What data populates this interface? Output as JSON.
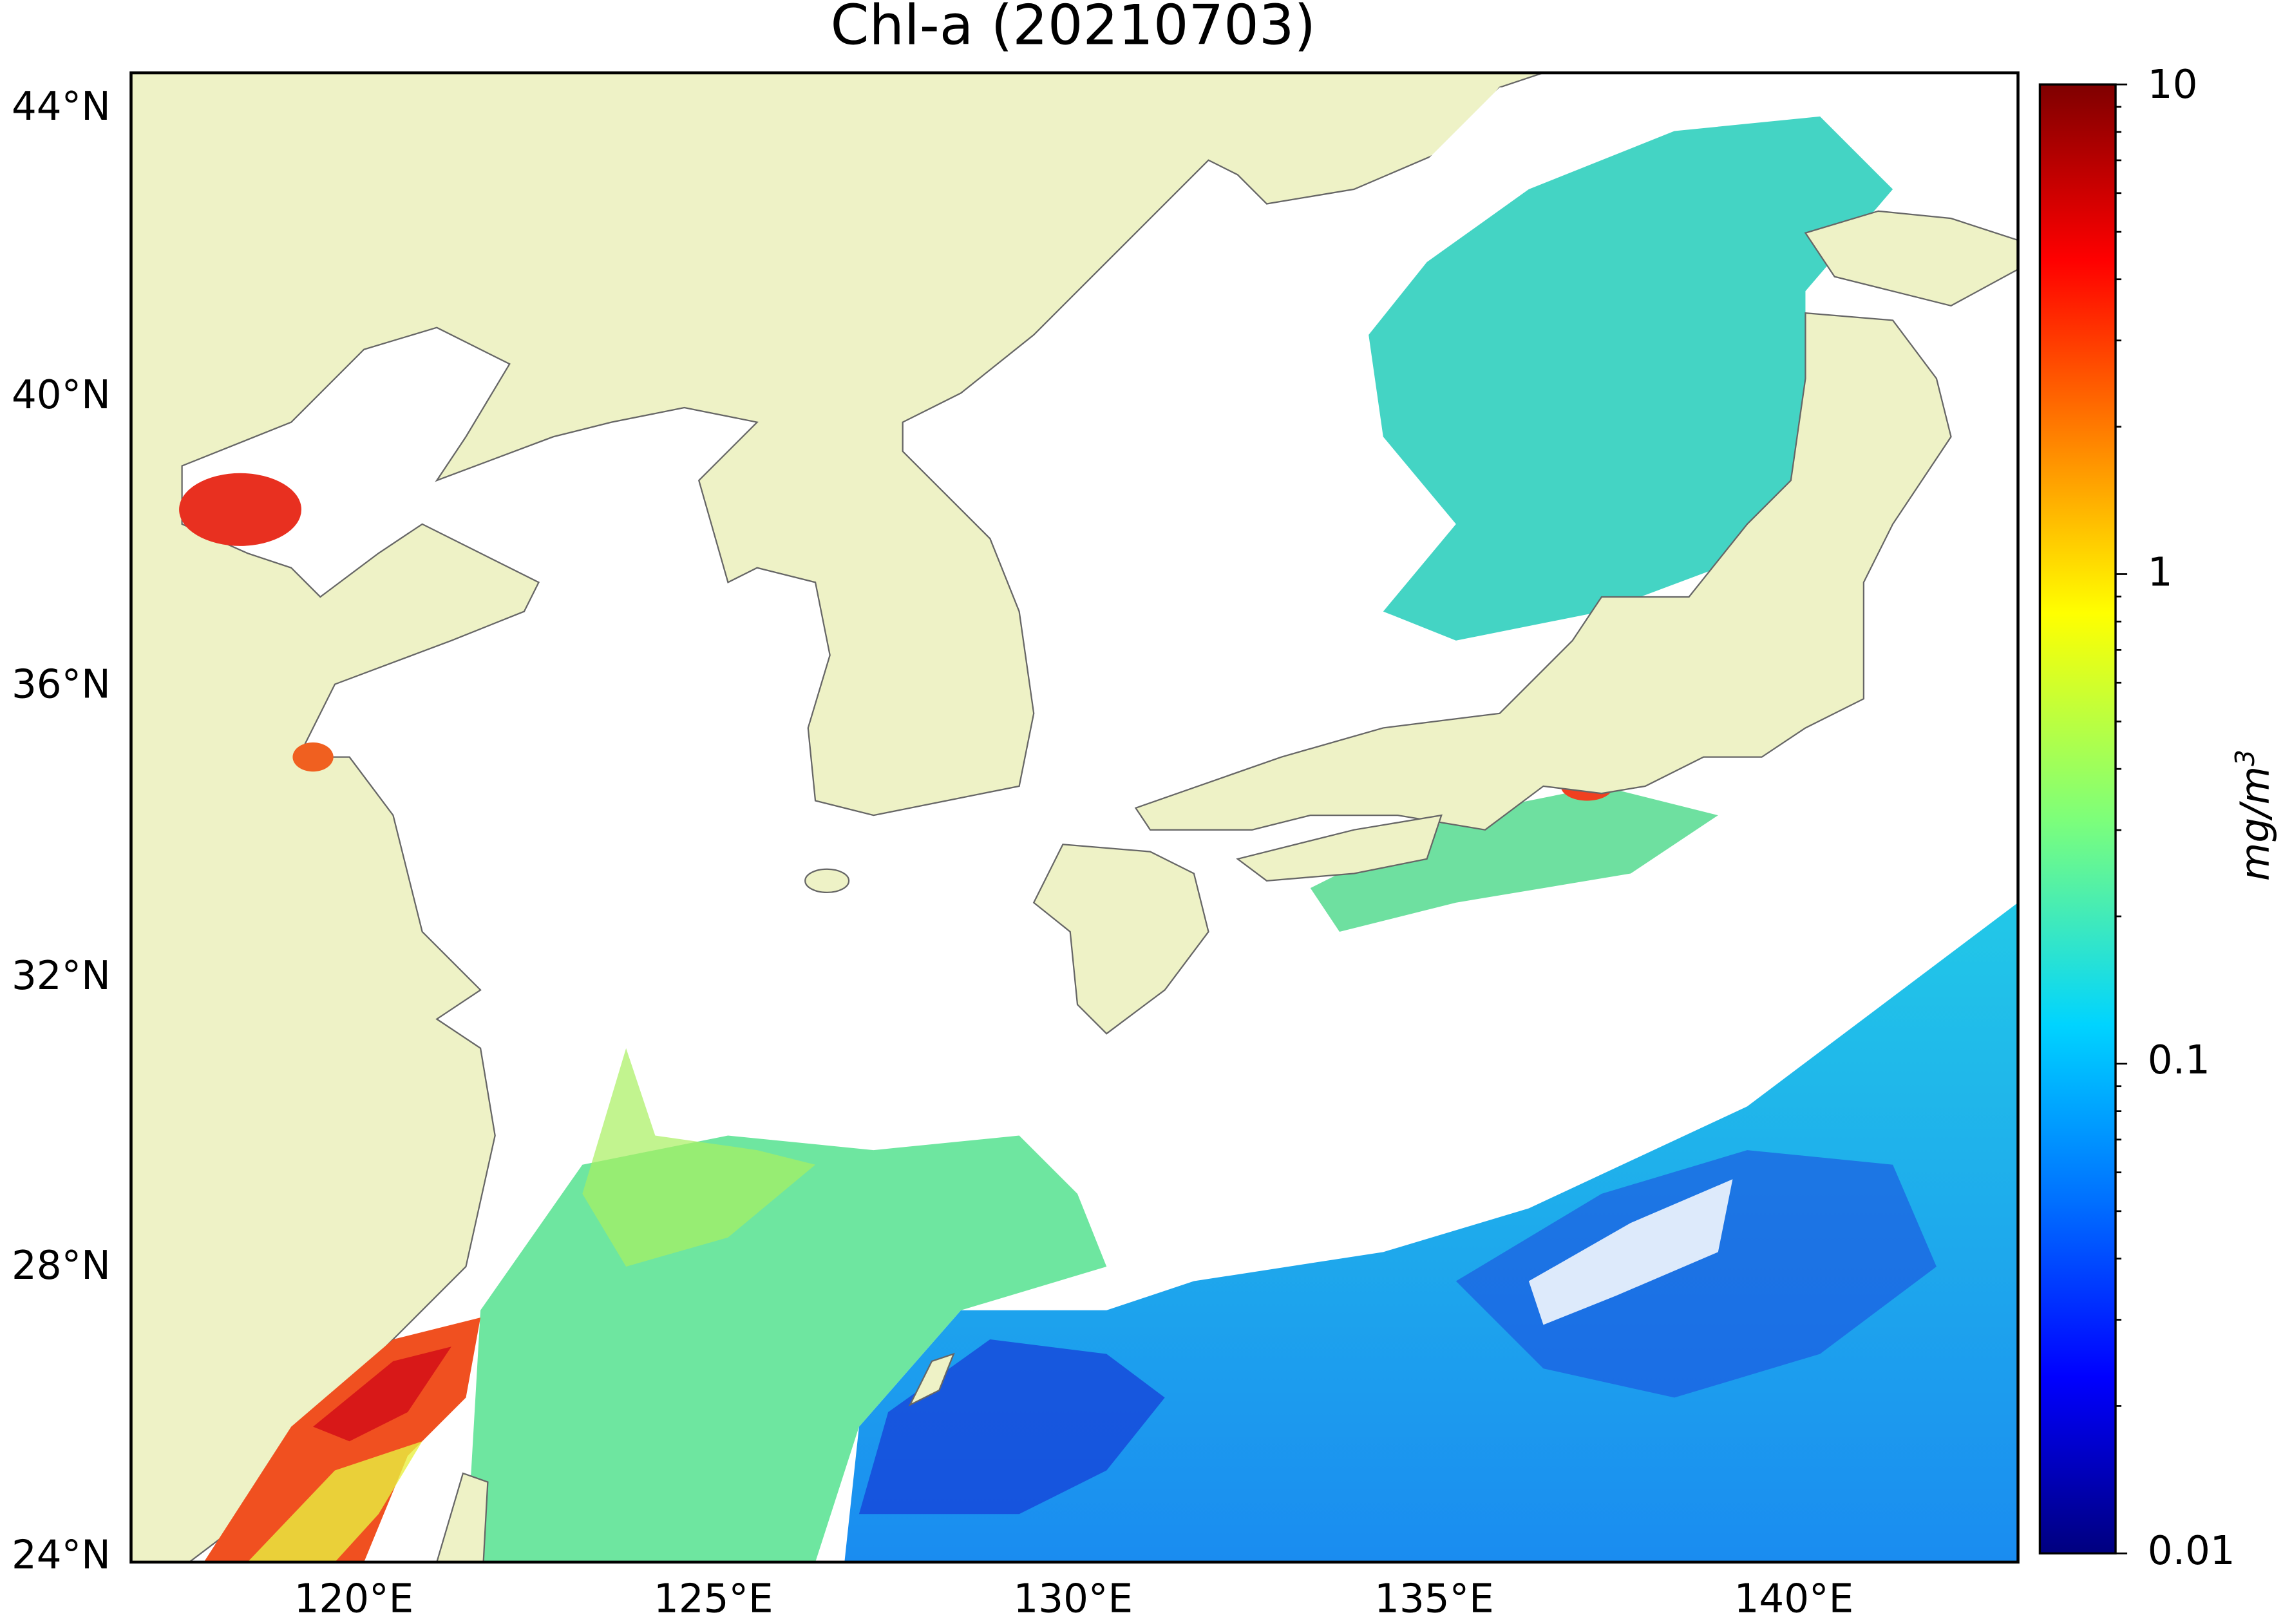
{
  "title": "Chl-a (20210703)",
  "map": {
    "lat_ticks": [
      "44°N",
      "40°N",
      "36°N",
      "32°N",
      "28°N",
      "24°N"
    ],
    "lon_ticks": [
      "120°E",
      "125°E",
      "130°E",
      "135°E",
      "140°E"
    ]
  },
  "colorbar": {
    "ticks": [
      "10",
      "1",
      "0.1",
      "0.01"
    ],
    "label": "mg/m",
    "label_sup": "3"
  }
}
